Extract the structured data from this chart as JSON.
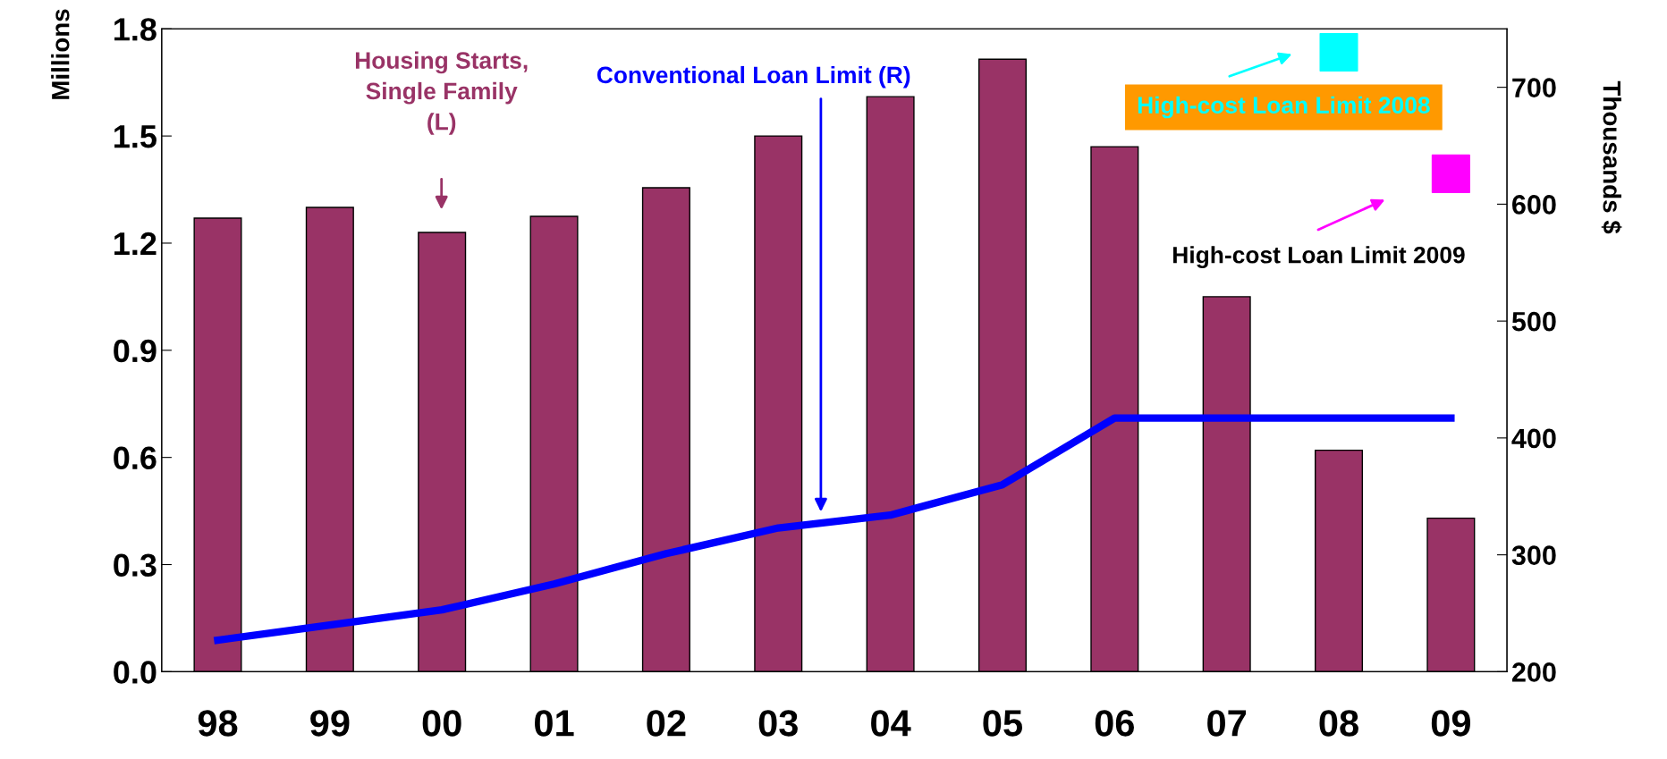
{
  "chart_data": {
    "type": "bar",
    "ylabel": "Millions",
    "y2label": "Thousands $",
    "categories": [
      "98",
      "99",
      "00",
      "01",
      "02",
      "03",
      "04",
      "05",
      "06",
      "07",
      "08",
      "09"
    ],
    "series": [
      {
        "color": "#993366",
        "values": [
          1.27,
          1.3,
          1.23,
          1.275,
          1.355,
          1.5,
          1.61,
          1.715,
          1.47,
          1.05,
          0.62,
          0.43
        ]
      },
      {
        "type": "line",
        "axis": "y2",
        "color": "#0000ff",
        "values": [
          227,
          240,
          253,
          275,
          301,
          323,
          334,
          360,
          417,
          417,
          417,
          417
        ]
      },
      {
        "type": "scatter",
        "axis": "y2",
        "color": "#00ffff",
        "marker": "square",
        "x": [
          "08"
        ],
        "values": [
          730
        ]
      },
      {
        "type": "scatter",
        "axis": "y2",
        "color": "#ff00ff",
        "marker": "square",
        "x": [
          "09"
        ],
        "values": [
          626
        ]
      }
    ],
    "ylim": [
      0,
      1.8
    ],
    "yticks": [
      "0.0",
      0.3,
      0.6,
      0.9,
      1.2,
      1.5,
      1.8
    ],
    "y2lim": [
      200,
      750
    ],
    "y2ticks": [
      200,
      300,
      400,
      500,
      600,
      700
    ],
    "annotations": [
      "Housing Starts,\nSingle Family\n(L)",
      "Conventional Loan Limit (R)",
      "High-cost Loan Limit 2008",
      "High-cost Loan Limit 2009"
    ],
    "grid": false,
    "legend": false
  }
}
